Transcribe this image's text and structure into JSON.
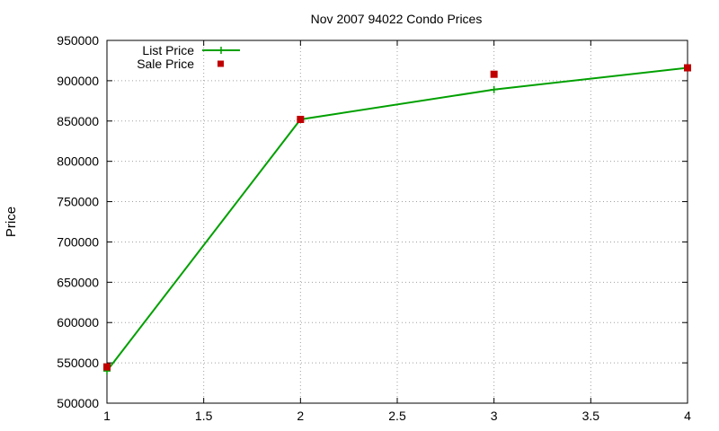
{
  "chart_data": {
    "type": "line",
    "title": "Nov 2007 94022 Condo Prices",
    "xlabel": "",
    "ylabel": "Price",
    "xlim": [
      1,
      4
    ],
    "ylim": [
      500000,
      950000
    ],
    "x_ticks": [
      "1",
      "1.5",
      "2",
      "2.5",
      "3",
      "3.5",
      "4"
    ],
    "y_ticks": [
      "500000",
      "550000",
      "600000",
      "650000",
      "700000",
      "750000",
      "800000",
      "850000",
      "900000",
      "950000"
    ],
    "grid": true,
    "legend_position": "top-left",
    "series": [
      {
        "name": "List Price",
        "style": "lines+points",
        "marker": "plus",
        "color": "#00a000",
        "x": [
          1,
          2,
          3,
          4
        ],
        "y": [
          540000,
          852000,
          889000,
          916000
        ]
      },
      {
        "name": "Sale Price",
        "style": "points",
        "marker": "square",
        "color": "#c00000",
        "x": [
          1,
          2,
          3,
          4
        ],
        "y": [
          545000,
          852000,
          908000,
          916000
        ]
      }
    ]
  }
}
